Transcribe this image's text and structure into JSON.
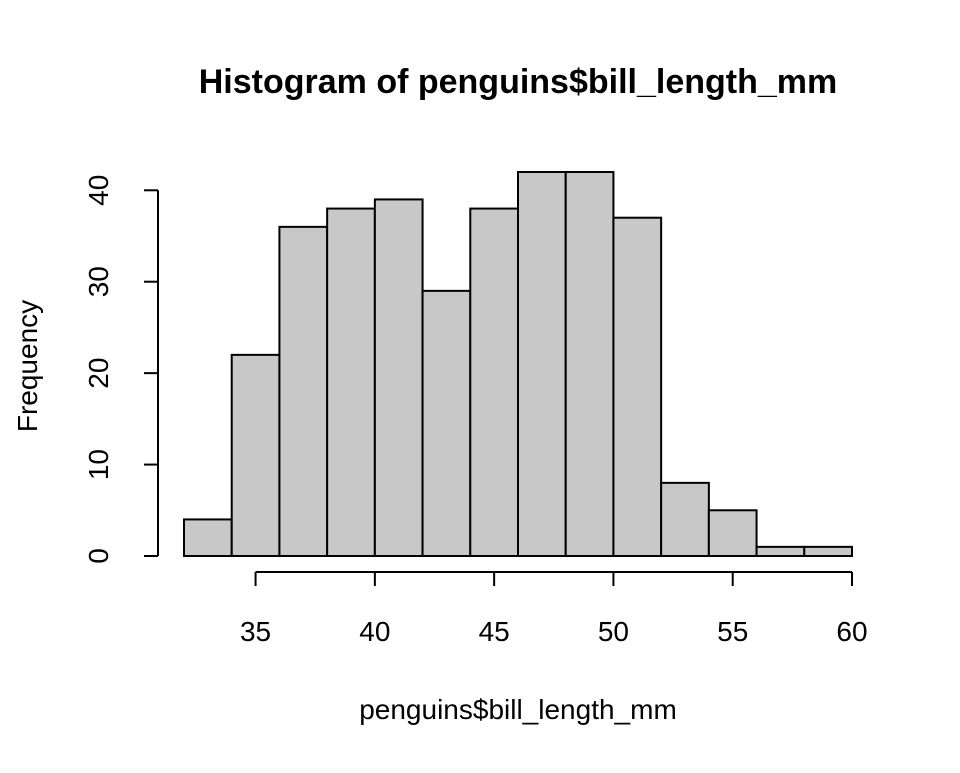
{
  "chart_data": {
    "type": "bar",
    "title": "Histogram of penguins$bill_length_mm",
    "xlabel": "penguins$bill_length_mm",
    "ylabel": "Frequency",
    "bin_edges": [
      32,
      34,
      36,
      38,
      40,
      42,
      44,
      46,
      48,
      50,
      52,
      54,
      56,
      58,
      60
    ],
    "values": [
      4,
      22,
      36,
      38,
      39,
      29,
      38,
      42,
      42,
      37,
      8,
      5,
      1,
      1
    ],
    "xlim": [
      32,
      60
    ],
    "ylim": [
      0,
      42
    ],
    "x_ticks": [
      "35",
      "40",
      "45",
      "50",
      "55",
      "60"
    ],
    "y_ticks": [
      "0",
      "10",
      "20",
      "30",
      "40"
    ],
    "grid": false,
    "bar_fill": "#c8c8c8",
    "bar_stroke": "#000000"
  }
}
